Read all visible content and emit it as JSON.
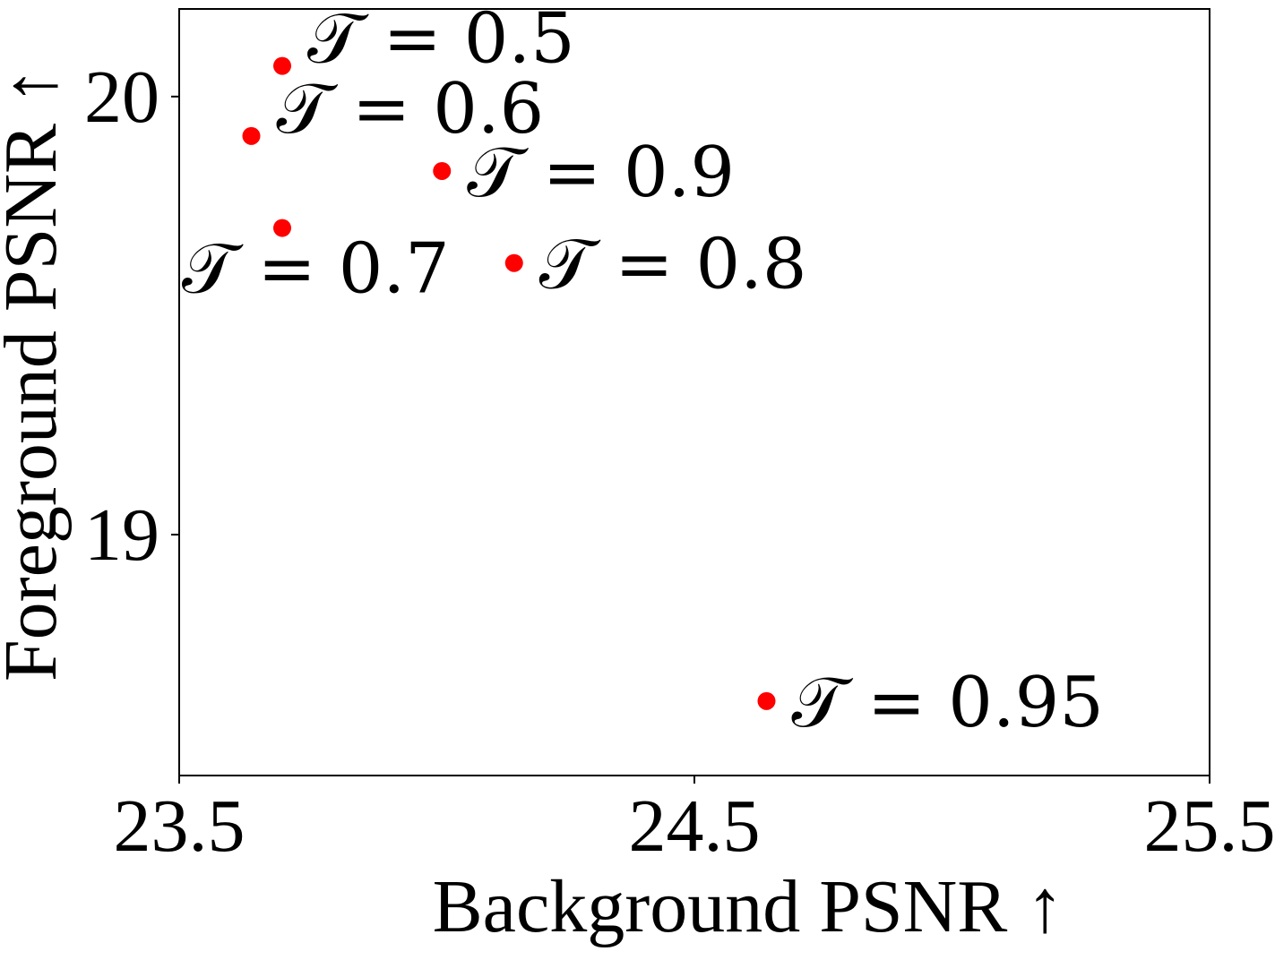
{
  "chart_data": {
    "type": "scatter",
    "title": "",
    "xlabel": "Background PSNR ↑",
    "ylabel": "Foreground PSNR ↑",
    "xlim": [
      23.5,
      25.5
    ],
    "ylim": [
      18.45,
      20.2
    ],
    "xticks": [
      {
        "value": 23.5,
        "label": "23.5"
      },
      {
        "value": 24.5,
        "label": "24.5"
      },
      {
        "value": 25.5,
        "label": "25.5"
      }
    ],
    "yticks": [
      {
        "value": 19,
        "label": "19"
      },
      {
        "value": 20,
        "label": "20"
      }
    ],
    "grid": false,
    "marker_color": "#ff0000",
    "series": [
      {
        "points": [
          {
            "x": 23.7,
            "y": 20.07,
            "label": "𝒯 = 0.5",
            "label_side": "upper-right"
          },
          {
            "x": 23.64,
            "y": 19.91,
            "label": "𝒯 = 0.6",
            "label_side": "upper-right"
          },
          {
            "x": 23.7,
            "y": 19.7,
            "label": "𝒯 = 0.7",
            "label_side": "below"
          },
          {
            "x": 24.15,
            "y": 19.62,
            "label": "𝒯 = 0.8",
            "label_side": "right"
          },
          {
            "x": 24.01,
            "y": 19.83,
            "label": "𝒯 = 0.9",
            "label_side": "right"
          },
          {
            "x": 24.64,
            "y": 18.62,
            "label": "𝒯 = 0.95",
            "label_side": "right"
          }
        ]
      }
    ]
  }
}
